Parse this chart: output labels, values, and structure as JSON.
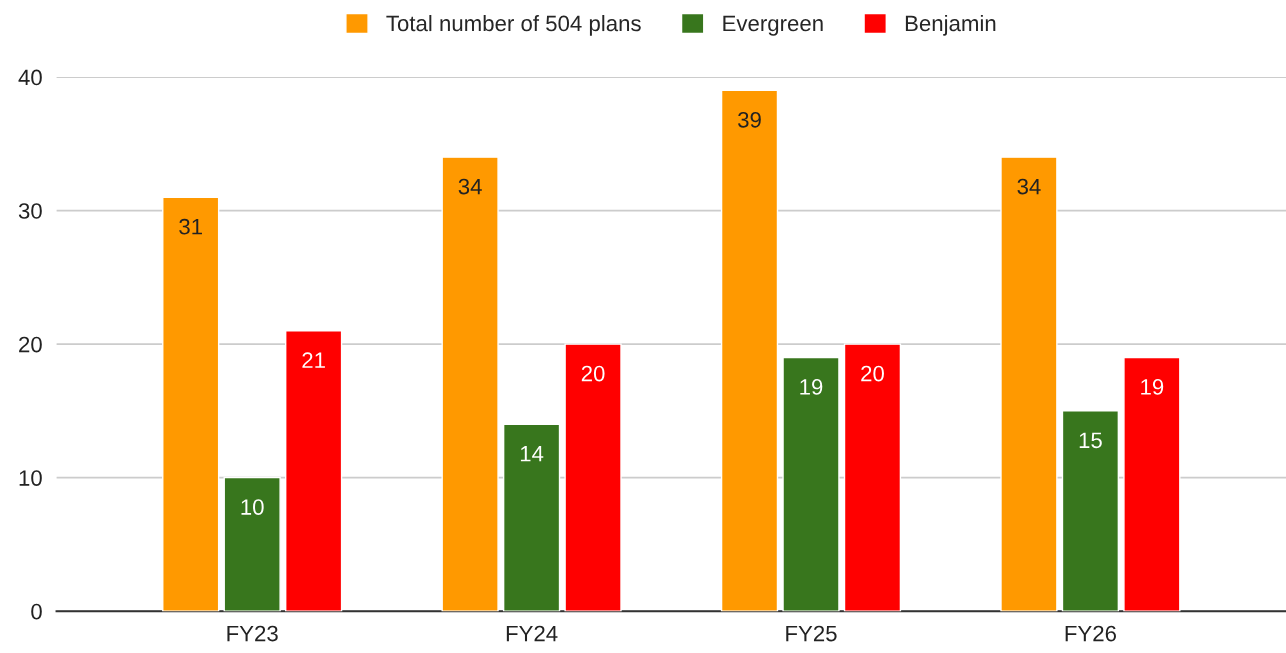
{
  "chart_data": {
    "type": "bar",
    "categories": [
      "FY23",
      "FY24",
      "FY25",
      "FY26"
    ],
    "series": [
      {
        "name": "Total number of 504 plans",
        "color": "#ff9900",
        "values": [
          31,
          34,
          39,
          34
        ]
      },
      {
        "name": "Evergreen",
        "color": "#38761d",
        "values": [
          10,
          14,
          19,
          15
        ]
      },
      {
        "name": "Benjamin",
        "color": "#ff0000",
        "values": [
          21,
          20,
          20,
          19
        ]
      }
    ],
    "ylim": [
      0,
      40
    ],
    "yticks": [
      0,
      10,
      20,
      30,
      40
    ],
    "grid": "y",
    "legend": "top",
    "data_labels": true
  }
}
